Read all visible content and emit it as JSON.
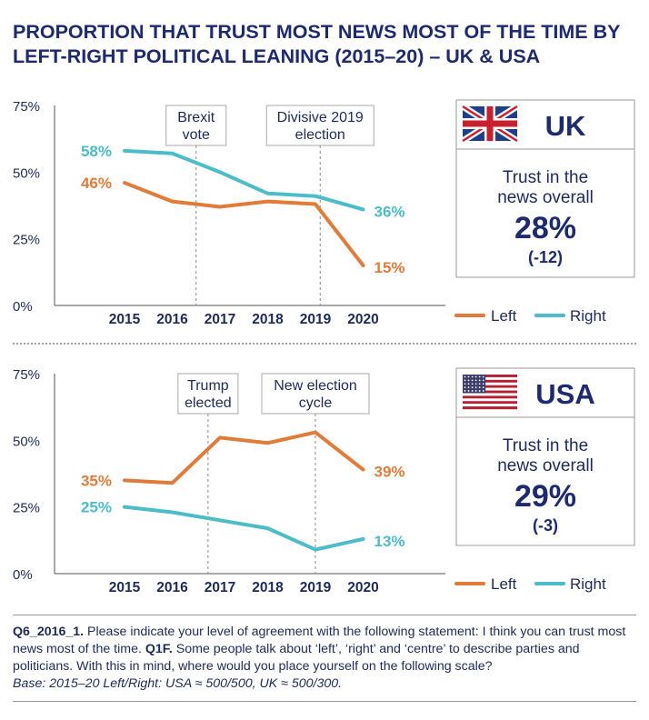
{
  "title": "PROPORTION THAT TRUST MOST NEWS MOST OF THE TIME BY LEFT-RIGHT POLITICAL LEANING (2015–20) – UK & USA",
  "colors": {
    "left": "#e07b39",
    "right": "#4bbcc8",
    "navy": "#1d2a6e",
    "axis": "#555555"
  },
  "legend": {
    "left": "Left",
    "right": "Right"
  },
  "chart_data": [
    {
      "type": "line",
      "country": "UK",
      "x": [
        2015,
        2016,
        2017,
        2018,
        2019,
        2020
      ],
      "x_labels": [
        "2015",
        "2016",
        "2017",
        "2018",
        "2019",
        "2020"
      ],
      "y_ticks": [
        "75%",
        "50%",
        "25%",
        "0%"
      ],
      "ylim": [
        0,
        75
      ],
      "series": [
        {
          "name": "Left",
          "values": [
            46,
            39,
            37,
            39,
            38,
            15
          ],
          "start_label": "46%",
          "end_label": "15%"
        },
        {
          "name": "Right",
          "values": [
            58,
            57,
            50,
            42,
            41,
            36
          ],
          "start_label": "58%",
          "end_label": "36%"
        }
      ],
      "annotations": [
        {
          "lines": [
            "Brexit",
            "vote"
          ],
          "x": 2016.5
        },
        {
          "lines": [
            "Divisive 2019",
            "election"
          ],
          "x": 2019.1
        }
      ],
      "summary": {
        "heading": "Trust in the news overall",
        "heading_lines": [
          "Trust in the",
          "news overall"
        ],
        "value": "28%",
        "change": "(-12)"
      },
      "flag": "uk-flag-icon"
    },
    {
      "type": "line",
      "country": "USA",
      "x": [
        2015,
        2016,
        2017,
        2018,
        2019,
        2020
      ],
      "x_labels": [
        "2015",
        "2016",
        "2017",
        "2018",
        "2019",
        "2020"
      ],
      "y_ticks": [
        "75%",
        "50%",
        "25%",
        "0%"
      ],
      "ylim": [
        0,
        75
      ],
      "series": [
        {
          "name": "Left",
          "values": [
            35,
            34,
            51,
            49,
            53,
            39
          ],
          "start_label": "35%",
          "end_label": "39%"
        },
        {
          "name": "Right",
          "values": [
            25,
            23,
            20,
            17,
            9,
            13
          ],
          "start_label": "25%",
          "end_label": "13%"
        }
      ],
      "annotations": [
        {
          "lines": [
            "Trump",
            "elected"
          ],
          "x": 2016.75
        },
        {
          "lines": [
            "New election",
            "cycle"
          ],
          "x": 2019
        }
      ],
      "summary": {
        "heading": "Trust in the news overall",
        "heading_lines": [
          "Trust in the",
          "news overall"
        ],
        "value": "29%",
        "change": "(-3)"
      },
      "flag": "usa-flag-icon"
    }
  ],
  "footnote": {
    "q1_code": "Q6_2016_1.",
    "q1_text": " Please indicate your level of agreement with the following statement: I think you can trust most news most of the time. ",
    "q2_code": "Q1F.",
    "q2_text": " Some people talk about ‘left’, ‘right’ and ‘centre’ to describe parties and politicians. With this in mind, where would you place yourself on the following scale?",
    "base": "Base: 2015–20 Left/Right: USA ≈ 500/500, UK ≈ 500/300."
  }
}
